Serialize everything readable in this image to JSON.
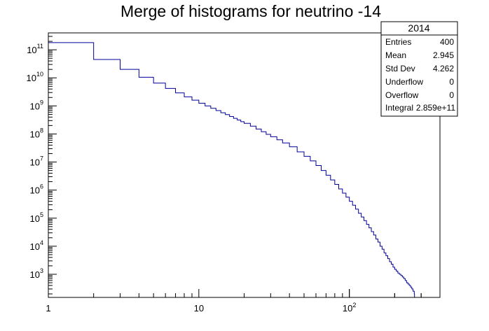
{
  "chart_data": {
    "type": "histogram",
    "title": "Merge of histograms for neutrino -14",
    "xlabel": "",
    "ylabel": "",
    "x_scale": "log",
    "y_scale": "log",
    "xlim": [
      1,
      400
    ],
    "ylim": [
      150,
      400000000000
    ],
    "x_ticks": [
      {
        "value": 1,
        "base": "1",
        "exp": ""
      },
      {
        "value": 10,
        "base": "10",
        "exp": ""
      },
      {
        "value": 100,
        "base": "10",
        "exp": "2"
      }
    ],
    "y_ticks": [
      {
        "value": 1000,
        "base": "10",
        "exp": "3"
      },
      {
        "value": 10000,
        "base": "10",
        "exp": "4"
      },
      {
        "value": 100000,
        "base": "10",
        "exp": "5"
      },
      {
        "value": 1000000,
        "base": "10",
        "exp": "6"
      },
      {
        "value": 10000000,
        "base": "10",
        "exp": "7"
      },
      {
        "value": 100000000,
        "base": "10",
        "exp": "8"
      },
      {
        "value": 1000000000,
        "base": "10",
        "exp": "9"
      },
      {
        "value": 10000000000,
        "base": "10",
        "exp": "10"
      },
      {
        "value": 100000000000,
        "base": "10",
        "exp": "11"
      }
    ],
    "bin_width": 1,
    "bins": [
      [
        1,
        180000000000
      ],
      [
        2,
        45000000000
      ],
      [
        3,
        20000000000
      ],
      [
        4,
        10500000000
      ],
      [
        5,
        6500000000
      ],
      [
        6,
        4200000000
      ],
      [
        7,
        2900000000
      ],
      [
        8,
        2100000000
      ],
      [
        9,
        1600000000
      ],
      [
        10,
        1250000000
      ],
      [
        11,
        1000000000
      ],
      [
        12,
        820000000
      ],
      [
        13,
        680000000
      ],
      [
        14,
        570000000
      ],
      [
        15,
        490000000
      ],
      [
        16,
        420000000
      ],
      [
        17,
        360000000
      ],
      [
        18,
        315000000
      ],
      [
        19,
        275000000
      ],
      [
        20,
        240000000
      ],
      [
        22,
        190000000
      ],
      [
        24,
        150000000
      ],
      [
        26,
        120000000
      ],
      [
        28,
        97000000
      ],
      [
        30,
        80000000
      ],
      [
        33,
        62000000
      ],
      [
        36,
        48000000
      ],
      [
        40,
        35000000
      ],
      [
        45,
        23000000
      ],
      [
        50,
        16000000
      ],
      [
        55,
        11000000
      ],
      [
        60,
        7500000
      ],
      [
        65,
        5000000
      ],
      [
        70,
        3400000
      ],
      [
        75,
        2300000
      ],
      [
        80,
        1600000
      ],
      [
        85,
        1100000
      ],
      [
        90,
        780000
      ],
      [
        95,
        560000
      ],
      [
        100,
        400000
      ],
      [
        105,
        290000
      ],
      [
        110,
        210000
      ],
      [
        115,
        150000
      ],
      [
        120,
        110000
      ],
      [
        125,
        82000
      ],
      [
        130,
        60000
      ],
      [
        135,
        45000
      ],
      [
        140,
        33000
      ],
      [
        145,
        25000
      ],
      [
        150,
        18000
      ],
      [
        155,
        14000
      ],
      [
        160,
        10000
      ],
      [
        165,
        7800
      ],
      [
        170,
        5800
      ],
      [
        175,
        4600
      ],
      [
        180,
        3600
      ],
      [
        185,
        2800
      ],
      [
        190,
        2300
      ],
      [
        195,
        1800
      ],
      [
        200,
        1500
      ],
      [
        205,
        1300
      ],
      [
        210,
        1100
      ],
      [
        215,
        1000
      ],
      [
        220,
        900
      ],
      [
        225,
        800
      ],
      [
        230,
        700
      ],
      [
        235,
        600
      ],
      [
        240,
        500
      ],
      [
        245,
        450
      ],
      [
        250,
        400
      ],
      [
        255,
        350
      ],
      [
        260,
        300
      ],
      [
        265,
        250
      ],
      [
        270,
        200
      ]
    ],
    "line_color": "#000099",
    "grid": false,
    "legend": "none"
  },
  "stats_box": {
    "title": "2014",
    "rows": [
      {
        "label": "Entries",
        "value": "400"
      },
      {
        "label": "Mean",
        "value": "2.945"
      },
      {
        "label": "Std Dev",
        "value": "4.262"
      },
      {
        "label": "Underflow",
        "value": "0"
      },
      {
        "label": "Overflow",
        "value": "0"
      },
      {
        "label": "Integral",
        "value": "2.859e+11"
      }
    ]
  }
}
